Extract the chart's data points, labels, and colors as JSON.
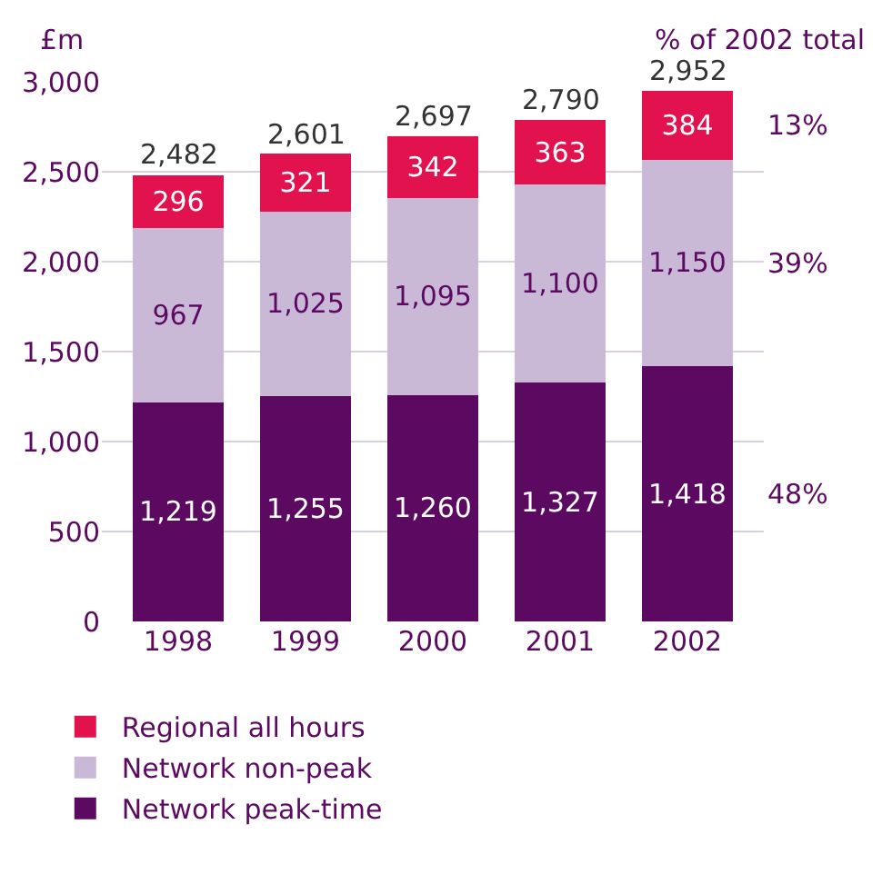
{
  "chart_data": {
    "type": "bar",
    "stacked": true,
    "ylabel": "£m",
    "categories": [
      "1998",
      "1999",
      "2000",
      "2001",
      "2002"
    ],
    "series": [
      {
        "name": "Network peak-time",
        "color": "#5c0a61",
        "values": [
          1219,
          1255,
          1260,
          1327,
          1418
        ],
        "value_labels": [
          "1,219",
          "1,255",
          "1,260",
          "1,327",
          "1,418"
        ]
      },
      {
        "name": "Network non-peak",
        "color": "#c9b9d7",
        "values": [
          967,
          1025,
          1095,
          1100,
          1150
        ],
        "value_labels": [
          "967",
          "1,025",
          "1,095",
          "1,100",
          "1,150"
        ]
      },
      {
        "name": "Regional all hours",
        "color": "#e2124f",
        "values": [
          296,
          321,
          342,
          363,
          384
        ],
        "value_labels": [
          "296",
          "321",
          "342",
          "363",
          "384"
        ]
      }
    ],
    "totals": [
      "2,482",
      "2,601",
      "2,697",
      "2,790",
      "2,952"
    ],
    "ylim": [
      0,
      3000
    ],
    "yticks": [
      {
        "value": 0,
        "label": "0"
      },
      {
        "value": 500,
        "label": "500"
      },
      {
        "value": 1000,
        "label": "1,000"
      },
      {
        "value": 1500,
        "label": "1,500"
      },
      {
        "value": 2000,
        "label": "2,000"
      },
      {
        "value": 2500,
        "label": "2,500"
      },
      {
        "value": 3000,
        "label": "3,000"
      }
    ],
    "grid": "y",
    "legend": "bottom",
    "annotations": [
      "% of 2002 total",
      "13%",
      "39%",
      "48%"
    ]
  }
}
